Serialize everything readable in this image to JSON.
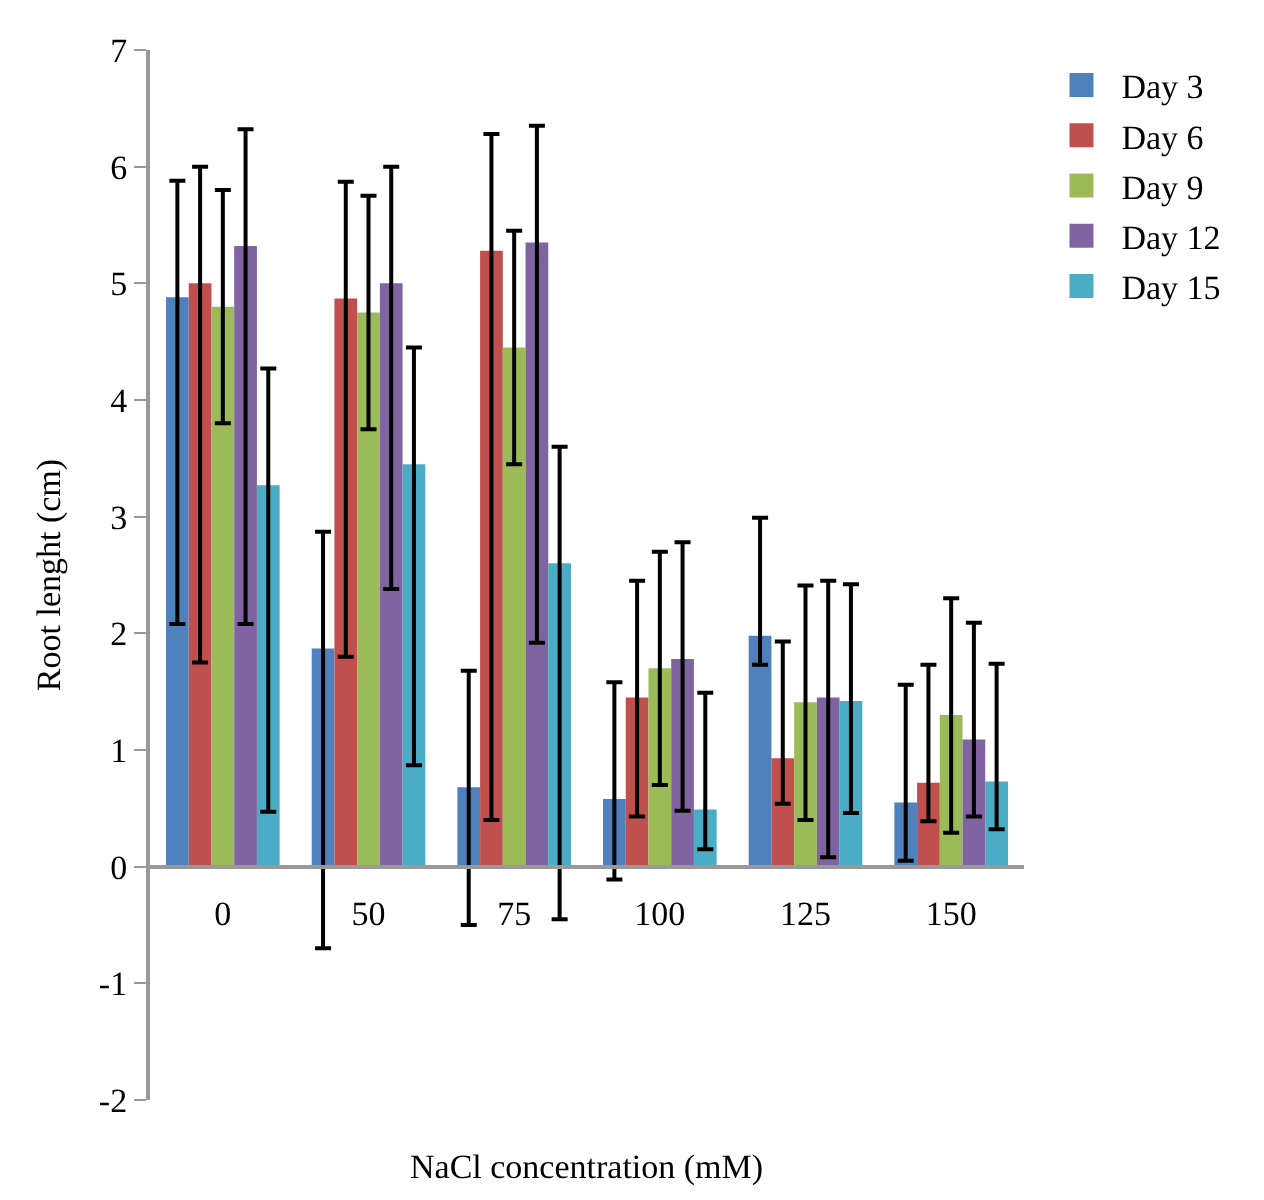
{
  "chart_data": {
    "type": "bar",
    "xlabel": "NaCl concentration (mM)",
    "ylabel": "Root lenght (cm)",
    "categories": [
      "0",
      "50",
      "75",
      "100",
      "125",
      "150"
    ],
    "ylim": [
      -2,
      7
    ],
    "yticks": [
      -2,
      -1,
      0,
      1,
      2,
      3,
      4,
      5,
      6,
      7
    ],
    "grid": false,
    "legend": "top right",
    "series": [
      {
        "name": "Day 3",
        "color": "#4f81bd",
        "values": [
          4.88,
          1.87,
          0.68,
          0.58,
          1.98,
          0.55
        ],
        "errors": [
          [
            2.08,
            5.88
          ],
          [
            -0.7,
            2.87
          ],
          [
            -0.5,
            1.68
          ],
          [
            -0.11,
            1.58
          ],
          [
            1.73,
            2.99
          ],
          [
            0.05,
            1.56
          ]
        ]
      },
      {
        "name": "Day 6",
        "color": "#c0504d",
        "values": [
          5.0,
          4.87,
          5.28,
          1.45,
          0.93,
          0.72
        ],
        "errors": [
          [
            1.75,
            6.0
          ],
          [
            1.8,
            5.87
          ],
          [
            0.4,
            6.28
          ],
          [
            0.43,
            2.45
          ],
          [
            0.54,
            1.93
          ],
          [
            0.39,
            1.73
          ]
        ]
      },
      {
        "name": "Day 9",
        "color": "#9bbb59",
        "values": [
          4.8,
          4.75,
          4.45,
          1.7,
          1.41,
          1.3
        ],
        "errors": [
          [
            3.8,
            5.8
          ],
          [
            3.75,
            5.75
          ],
          [
            3.45,
            5.45
          ],
          [
            0.7,
            2.7
          ],
          [
            0.4,
            2.41
          ],
          [
            0.29,
            2.3
          ]
        ]
      },
      {
        "name": "Day 12",
        "color": "#8064a2",
        "values": [
          5.32,
          5.0,
          5.35,
          1.78,
          1.45,
          1.09
        ],
        "errors": [
          [
            2.08,
            6.32
          ],
          [
            2.38,
            6.0
          ],
          [
            1.92,
            6.35
          ],
          [
            0.48,
            2.78
          ],
          [
            0.08,
            2.45
          ],
          [
            0.43,
            2.09
          ]
        ]
      },
      {
        "name": "Day 15",
        "color": "#4bacc6",
        "values": [
          3.27,
          3.45,
          2.6,
          0.49,
          1.42,
          0.73
        ],
        "errors": [
          [
            0.47,
            4.27
          ],
          [
            0.87,
            4.45
          ],
          [
            -0.45,
            3.6
          ],
          [
            0.15,
            1.49
          ],
          [
            0.46,
            2.42
          ],
          [
            0.32,
            1.74
          ]
        ]
      }
    ]
  }
}
